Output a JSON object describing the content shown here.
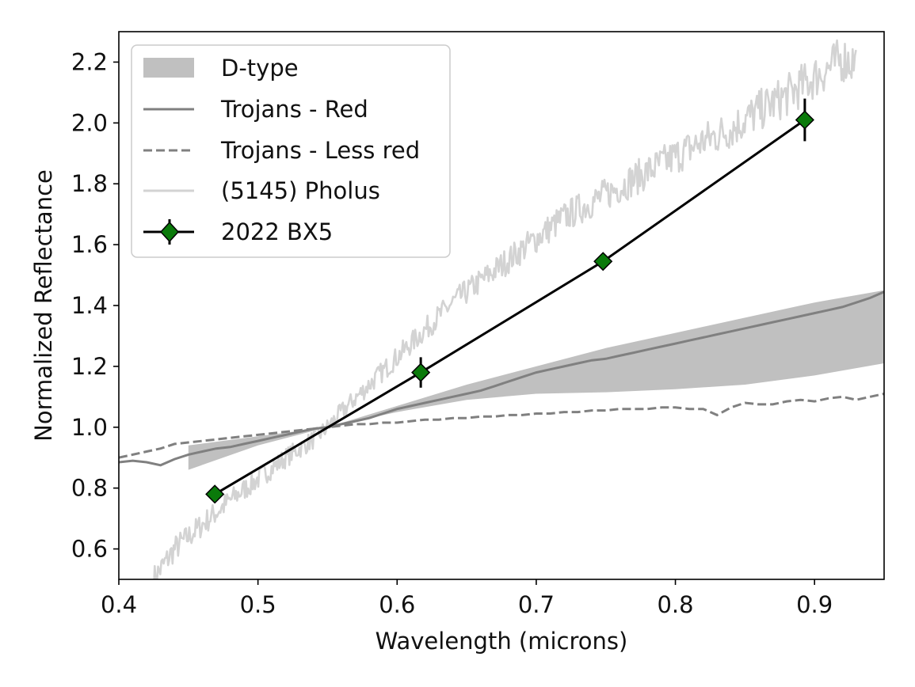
{
  "chart_data": {
    "type": "line",
    "title": "",
    "xlabel": "Wavelength (microns)",
    "ylabel": "Normalized Reflectance",
    "xlim": [
      0.4,
      0.95
    ],
    "ylim": [
      0.5,
      2.3
    ],
    "xticks": [
      0.4,
      0.5,
      0.6,
      0.7,
      0.8,
      0.9
    ],
    "xtick_labels": [
      "0.4",
      "0.5",
      "0.6",
      "0.7",
      "0.8",
      "0.9"
    ],
    "yticks": [
      0.6,
      0.8,
      1.0,
      1.2,
      1.4,
      1.6,
      1.8,
      2.0,
      2.2
    ],
    "ytick_labels": [
      "0.6",
      "0.8",
      "1.0",
      "1.2",
      "1.4",
      "1.6",
      "1.8",
      "2.0",
      "2.2"
    ],
    "grid": false,
    "legend_position": "top-left",
    "colors": {
      "dtype_band": "#c0c0c0",
      "trojans_red": "#808080",
      "trojans_less_red": "#808080",
      "pholus": "#d3d3d3",
      "bx5_line": "#000000",
      "bx5_marker": "#0a7a0a"
    },
    "series": [
      {
        "name": "D-type",
        "kind": "band",
        "x": [
          0.45,
          0.5,
          0.55,
          0.6,
          0.65,
          0.7,
          0.75,
          0.8,
          0.85,
          0.9,
          0.95
        ],
        "lower": [
          0.86,
          0.94,
          1.0,
          1.05,
          1.09,
          1.11,
          1.115,
          1.125,
          1.14,
          1.17,
          1.21
        ],
        "upper": [
          0.94,
          0.97,
          1.0,
          1.07,
          1.14,
          1.2,
          1.26,
          1.31,
          1.36,
          1.41,
          1.45
        ]
      },
      {
        "name": "Trojans - Red",
        "kind": "line",
        "style": "solid",
        "x": [
          0.4,
          0.41,
          0.42,
          0.43,
          0.44,
          0.45,
          0.46,
          0.47,
          0.48,
          0.49,
          0.5,
          0.51,
          0.52,
          0.53,
          0.54,
          0.55,
          0.56,
          0.57,
          0.58,
          0.59,
          0.6,
          0.61,
          0.62,
          0.63,
          0.64,
          0.65,
          0.66,
          0.67,
          0.68,
          0.69,
          0.7,
          0.71,
          0.72,
          0.73,
          0.74,
          0.75,
          0.76,
          0.77,
          0.78,
          0.79,
          0.8,
          0.81,
          0.82,
          0.83,
          0.84,
          0.85,
          0.86,
          0.87,
          0.88,
          0.89,
          0.9,
          0.91,
          0.92,
          0.93,
          0.94,
          0.95
        ],
        "y": [
          0.885,
          0.89,
          0.885,
          0.875,
          0.895,
          0.91,
          0.92,
          0.93,
          0.935,
          0.945,
          0.955,
          0.965,
          0.975,
          0.985,
          0.995,
          1.0,
          1.01,
          1.02,
          1.03,
          1.045,
          1.06,
          1.07,
          1.08,
          1.09,
          1.1,
          1.11,
          1.12,
          1.135,
          1.15,
          1.165,
          1.18,
          1.19,
          1.2,
          1.21,
          1.22,
          1.225,
          1.235,
          1.245,
          1.255,
          1.265,
          1.275,
          1.285,
          1.295,
          1.305,
          1.315,
          1.325,
          1.335,
          1.345,
          1.355,
          1.365,
          1.375,
          1.385,
          1.395,
          1.41,
          1.425,
          1.445
        ]
      },
      {
        "name": "Trojans - Less red",
        "kind": "line",
        "style": "dashed",
        "x": [
          0.4,
          0.41,
          0.42,
          0.43,
          0.44,
          0.45,
          0.46,
          0.47,
          0.48,
          0.49,
          0.5,
          0.51,
          0.52,
          0.53,
          0.54,
          0.55,
          0.56,
          0.57,
          0.58,
          0.59,
          0.6,
          0.61,
          0.62,
          0.63,
          0.64,
          0.65,
          0.66,
          0.67,
          0.68,
          0.69,
          0.7,
          0.71,
          0.72,
          0.73,
          0.74,
          0.75,
          0.76,
          0.77,
          0.78,
          0.79,
          0.8,
          0.81,
          0.82,
          0.83,
          0.84,
          0.85,
          0.86,
          0.87,
          0.88,
          0.89,
          0.9,
          0.91,
          0.92,
          0.93,
          0.94,
          0.95
        ],
        "y": [
          0.9,
          0.91,
          0.92,
          0.93,
          0.945,
          0.95,
          0.955,
          0.96,
          0.965,
          0.97,
          0.975,
          0.98,
          0.985,
          0.99,
          0.995,
          1.0,
          1.005,
          1.01,
          1.01,
          1.015,
          1.015,
          1.02,
          1.025,
          1.025,
          1.03,
          1.03,
          1.035,
          1.035,
          1.04,
          1.04,
          1.045,
          1.045,
          1.05,
          1.05,
          1.055,
          1.055,
          1.06,
          1.06,
          1.06,
          1.065,
          1.065,
          1.06,
          1.06,
          1.04,
          1.065,
          1.08,
          1.075,
          1.075,
          1.085,
          1.09,
          1.085,
          1.095,
          1.1,
          1.09,
          1.1,
          1.11
        ]
      },
      {
        "name": "(5145) Pholus",
        "kind": "noisy-line",
        "x": [
          0.425,
          0.44,
          0.46,
          0.48,
          0.5,
          0.52,
          0.54,
          0.55,
          0.56,
          0.58,
          0.6,
          0.62,
          0.64,
          0.66,
          0.68,
          0.7,
          0.72,
          0.74,
          0.76,
          0.78,
          0.8,
          0.82,
          0.84,
          0.86,
          0.88,
          0.9,
          0.92,
          0.93
        ],
        "y": [
          0.5,
          0.6,
          0.68,
          0.76,
          0.83,
          0.9,
          0.96,
          1.0,
          1.05,
          1.14,
          1.23,
          1.32,
          1.41,
          1.48,
          1.55,
          1.62,
          1.69,
          1.74,
          1.79,
          1.84,
          1.89,
          1.94,
          1.98,
          2.04,
          2.09,
          2.15,
          2.21,
          2.2
        ]
      },
      {
        "name": "2022 BX5",
        "kind": "points-line",
        "x": [
          0.469,
          0.617,
          0.748,
          0.893
        ],
        "y": [
          0.78,
          1.18,
          1.545,
          2.01
        ],
        "yerr": [
          0.02,
          0.05,
          0.015,
          0.07
        ]
      }
    ],
    "legend": [
      "D-type",
      "Trojans - Red",
      "Trojans - Less red",
      "(5145) Pholus",
      "2022 BX5"
    ]
  }
}
